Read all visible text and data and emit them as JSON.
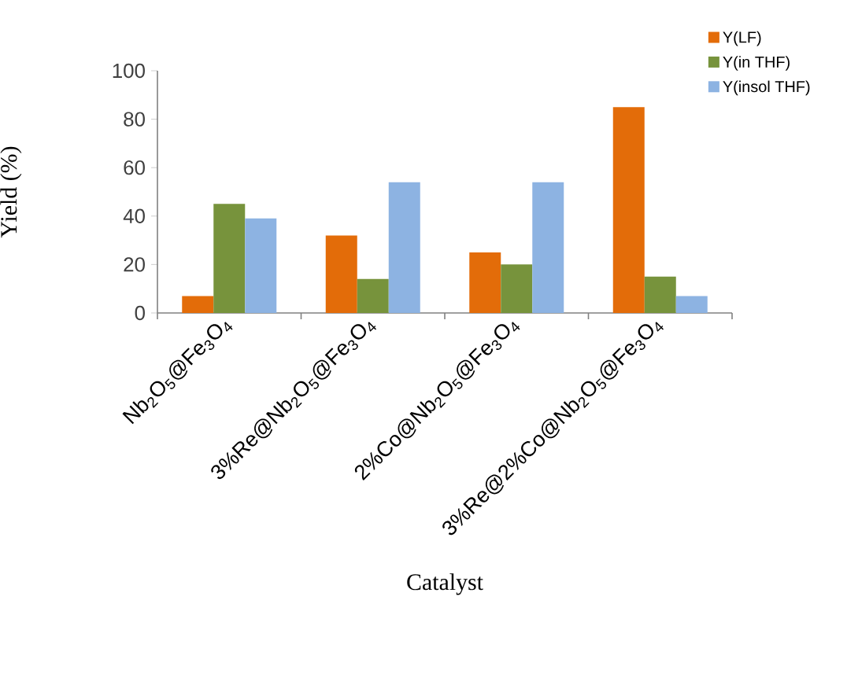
{
  "chart_data": {
    "type": "bar",
    "xlabel": "Catalyst",
    "ylabel": "Yield (%)",
    "categories": [
      "Nb$_{2}$O$_{5}$@Fe$_{3}$O$_{4}$",
      "3%Re@Nb$_{2}$O$_{5}$@Fe$_{3}$O$_{4}$",
      "2%Co@Nb$_{2}$O$_{5}$@Fe$_{3}$O$_{4}$",
      "3%Re@2%Co@Nb$_{2}$O$_{5}$@Fe$_{3}$O$_{4}$"
    ],
    "series": [
      {
        "name": "Y(LF)",
        "color": "#e36c09",
        "values": [
          7,
          32,
          25,
          85
        ]
      },
      {
        "name": "Y(in THF)",
        "color": "#77933c",
        "values": [
          45,
          14,
          20,
          15
        ]
      },
      {
        "name": "Y(insol THF)",
        "color": "#8db3e2",
        "values": [
          39,
          54,
          54,
          7
        ]
      }
    ],
    "ylim": [
      0,
      100
    ],
    "yticks": [
      0,
      20,
      40,
      60,
      80,
      100
    ],
    "grid": false,
    "legend": "top right"
  }
}
